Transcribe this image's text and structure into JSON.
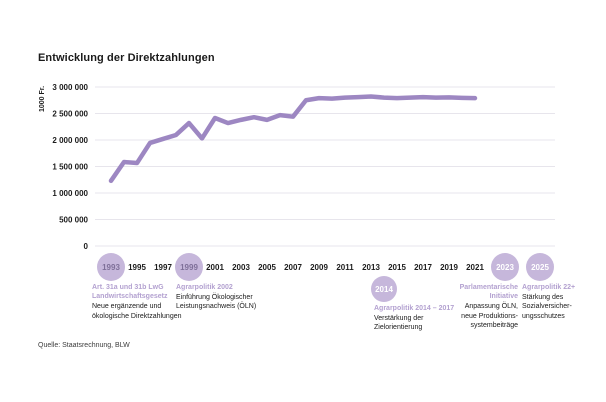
{
  "source": "Quelle: Staatsrechnung, BLW",
  "colors": {
    "line": "#9d87c2",
    "milestone_circle": "#c6b7db",
    "milestone_heading": "#b3a1d0",
    "grid": "#e7e5ec",
    "text": "#1a1a1a"
  },
  "chart_data": {
    "type": "line",
    "title": "Entwicklung der Direktzahlungen",
    "ylabel": "1000 Fr.",
    "ylim": [
      0,
      3000000
    ],
    "grid": true,
    "yticks": [
      [
        0,
        "0"
      ],
      [
        500000,
        "500 000"
      ],
      [
        1000000,
        "1 000 000"
      ],
      [
        1500000,
        "1 500 000"
      ],
      [
        2000000,
        "2 000 000"
      ],
      [
        2500000,
        "2 500 000"
      ],
      [
        3000000,
        "3 000 000"
      ]
    ],
    "x_axis_labels": [
      "1993",
      "1995",
      "1997",
      "1999",
      "2001",
      "2003",
      "2005",
      "2007",
      "2009",
      "2011",
      "2013",
      "2015",
      "2017",
      "2019",
      "2021",
      "2023",
      "2025"
    ],
    "series": [
      {
        "name": "Direktzahlungen",
        "x": [
          1993,
          1994,
          1995,
          1996,
          1997,
          1998,
          1999,
          2000,
          2001,
          2002,
          2003,
          2004,
          2005,
          2006,
          2007,
          2008,
          2009,
          2010,
          2011,
          2012,
          2013,
          2014,
          2015,
          2016,
          2017,
          2018,
          2019,
          2020,
          2021
        ],
        "values": [
          1230000,
          1585000,
          1565000,
          1945000,
          2020000,
          2095000,
          2320000,
          2030000,
          2415000,
          2320000,
          2380000,
          2430000,
          2380000,
          2470000,
          2440000,
          2750000,
          2790000,
          2780000,
          2800000,
          2810000,
          2820000,
          2800000,
          2790000,
          2800000,
          2810000,
          2800000,
          2805000,
          2795000,
          2790000
        ]
      }
    ]
  },
  "milestones": [
    {
      "year": "1993",
      "on_axis": true,
      "heading": "Art. 31a und 31b LwG\nLandwirtschaftsgesetz",
      "body": "Neue ergänzende und\nökologische Direktzahlungen"
    },
    {
      "year": "1999",
      "on_axis": true,
      "heading": "Agrarpolitik 2002",
      "body": "Einführung Ökologischer\nLeistungsnachweis (ÖLN)"
    },
    {
      "year": "2014",
      "on_axis": false,
      "heading": "Agrarpolitik 2014 – 2017",
      "body": "Verstärkung der\nZielorientierung"
    },
    {
      "year": "2023",
      "on_axis": true,
      "heading": "Parlamentarische\nInitiative",
      "body": "Anpassung ÖLN,\nneue Produktions-\nsystembeiträge"
    },
    {
      "year": "2025",
      "on_axis": true,
      "heading": "Agrarpolitik 22+",
      "body": "Stärkung des\nSozialversicher-\nungsschutzes"
    }
  ]
}
